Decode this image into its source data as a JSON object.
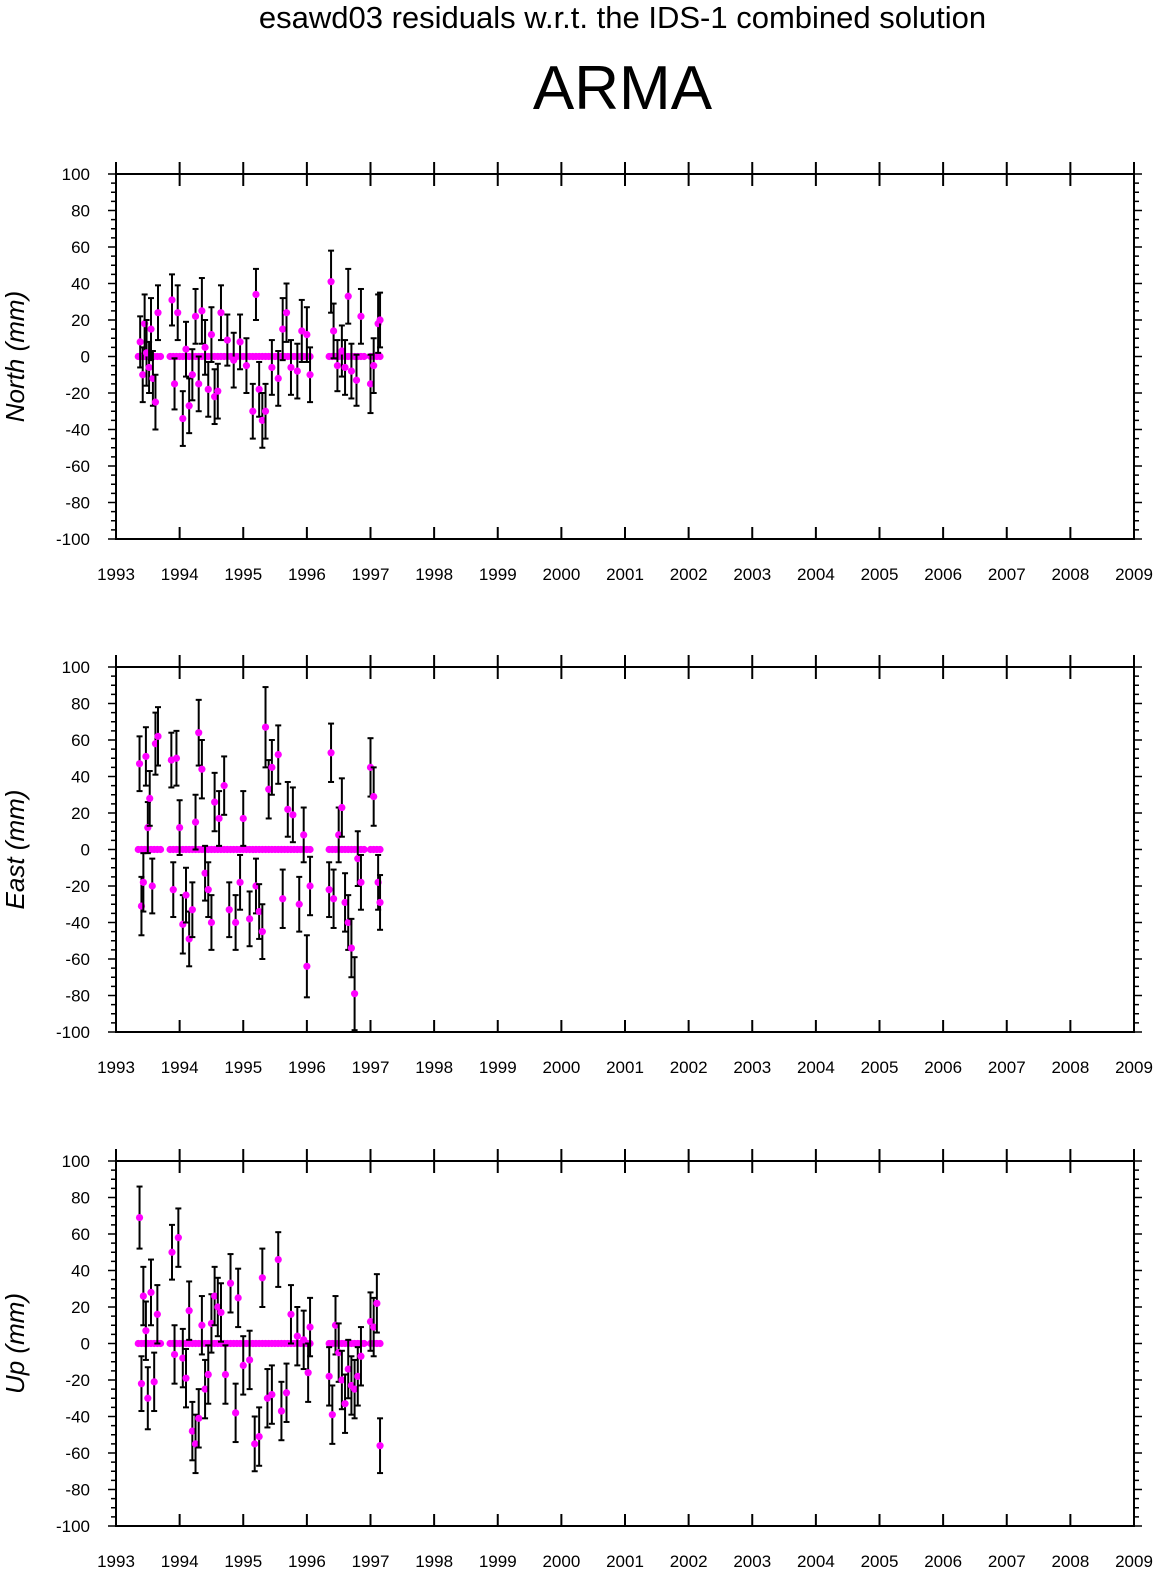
{
  "header": {
    "supertitle": "esawd03 residuals w.r.t. the IDS-1 combined solution",
    "station": "ARMA"
  },
  "colors": {
    "point": "#ff00ff",
    "errorbar": "#000000",
    "axis": "#000000"
  },
  "chart_data": [
    {
      "type": "scatter",
      "ylabel": "North (mm)",
      "ylim": [
        -100,
        100
      ],
      "yticks": [
        -100,
        -80,
        -60,
        -40,
        -20,
        0,
        20,
        40,
        60,
        80,
        100
      ],
      "xlim": [
        1993,
        2009
      ],
      "xticks": [
        "1993",
        "1994",
        "1995",
        "1996",
        "1997",
        "1998",
        "1999",
        "2000",
        "2001",
        "2002",
        "2003",
        "2004",
        "2005",
        "2006",
        "2007",
        "2008",
        "2009"
      ],
      "zero_points": [
        1993.35,
        1993.4,
        1993.45,
        1993.5,
        1993.55,
        1993.6,
        1993.65,
        1993.7,
        1993.85,
        1993.9,
        1993.95,
        1994.0,
        1994.05,
        1994.1,
        1994.15,
        1994.2,
        1994.25,
        1994.3,
        1994.35,
        1994.4,
        1994.45,
        1994.5,
        1994.55,
        1994.6,
        1994.65,
        1994.7,
        1994.75,
        1994.8,
        1994.85,
        1994.9,
        1994.95,
        1995.0,
        1995.05,
        1995.1,
        1995.15,
        1995.2,
        1995.25,
        1995.3,
        1995.35,
        1995.4,
        1995.45,
        1995.5,
        1995.55,
        1995.6,
        1995.65,
        1995.7,
        1995.75,
        1995.8,
        1995.85,
        1995.9,
        1995.95,
        1996.0,
        1996.05,
        1996.35,
        1996.4,
        1996.45,
        1996.5,
        1996.55,
        1996.6,
        1996.65,
        1996.7,
        1996.75,
        1996.8,
        1996.85,
        1996.9,
        1997.0,
        1997.05,
        1997.1,
        1997.15
      ],
      "points": [
        {
          "x": 1993.38,
          "y": 8,
          "e": 14
        },
        {
          "x": 1993.42,
          "y": -10,
          "e": 15
        },
        {
          "x": 1993.45,
          "y": 18,
          "e": 16
        },
        {
          "x": 1993.48,
          "y": 2,
          "e": 18
        },
        {
          "x": 1993.52,
          "y": -6,
          "e": 14
        },
        {
          "x": 1993.55,
          "y": 15,
          "e": 17
        },
        {
          "x": 1993.58,
          "y": -12,
          "e": 15
        },
        {
          "x": 1993.62,
          "y": -25,
          "e": 15
        },
        {
          "x": 1993.66,
          "y": 24,
          "e": 15
        },
        {
          "x": 1993.88,
          "y": 31,
          "e": 14
        },
        {
          "x": 1993.92,
          "y": -15,
          "e": 14
        },
        {
          "x": 1993.97,
          "y": 24,
          "e": 15
        },
        {
          "x": 1994.05,
          "y": -34,
          "e": 15
        },
        {
          "x": 1994.1,
          "y": 4,
          "e": 15
        },
        {
          "x": 1994.15,
          "y": -27,
          "e": 15
        },
        {
          "x": 1994.2,
          "y": -10,
          "e": 14
        },
        {
          "x": 1994.25,
          "y": 22,
          "e": 15
        },
        {
          "x": 1994.3,
          "y": -15,
          "e": 15
        },
        {
          "x": 1994.35,
          "y": 25,
          "e": 18
        },
        {
          "x": 1994.4,
          "y": 5,
          "e": 15
        },
        {
          "x": 1994.45,
          "y": -18,
          "e": 15
        },
        {
          "x": 1994.5,
          "y": 12,
          "e": 15
        },
        {
          "x": 1994.55,
          "y": -22,
          "e": 15
        },
        {
          "x": 1994.6,
          "y": -19,
          "e": 15
        },
        {
          "x": 1994.65,
          "y": 24,
          "e": 15
        },
        {
          "x": 1994.75,
          "y": 9,
          "e": 14
        },
        {
          "x": 1994.85,
          "y": -2,
          "e": 15
        },
        {
          "x": 1994.95,
          "y": 8,
          "e": 15
        },
        {
          "x": 1995.05,
          "y": -5,
          "e": 15
        },
        {
          "x": 1995.15,
          "y": -30,
          "e": 15
        },
        {
          "x": 1995.2,
          "y": 34,
          "e": 14
        },
        {
          "x": 1995.25,
          "y": -18,
          "e": 15
        },
        {
          "x": 1995.3,
          "y": -35,
          "e": 15
        },
        {
          "x": 1995.35,
          "y": -30,
          "e": 15
        },
        {
          "x": 1995.45,
          "y": -6,
          "e": 15
        },
        {
          "x": 1995.55,
          "y": -12,
          "e": 15
        },
        {
          "x": 1995.62,
          "y": 15,
          "e": 17
        },
        {
          "x": 1995.68,
          "y": 24,
          "e": 16
        },
        {
          "x": 1995.75,
          "y": -6,
          "e": 15
        },
        {
          "x": 1995.85,
          "y": -8,
          "e": 15
        },
        {
          "x": 1995.92,
          "y": 14,
          "e": 17
        },
        {
          "x": 1996.0,
          "y": 12,
          "e": 15
        },
        {
          "x": 1996.05,
          "y": -10,
          "e": 15
        },
        {
          "x": 1996.38,
          "y": 41,
          "e": 17
        },
        {
          "x": 1996.42,
          "y": 14,
          "e": 15
        },
        {
          "x": 1996.48,
          "y": -5,
          "e": 14
        },
        {
          "x": 1996.55,
          "y": 3,
          "e": 14
        },
        {
          "x": 1996.6,
          "y": -6,
          "e": 15
        },
        {
          "x": 1996.65,
          "y": 33,
          "e": 15
        },
        {
          "x": 1996.7,
          "y": -8,
          "e": 15
        },
        {
          "x": 1996.78,
          "y": -13,
          "e": 14
        },
        {
          "x": 1996.85,
          "y": 22,
          "e": 15
        },
        {
          "x": 1997.0,
          "y": -15,
          "e": 16
        },
        {
          "x": 1997.05,
          "y": -5,
          "e": 15
        },
        {
          "x": 1997.12,
          "y": 18,
          "e": 16
        },
        {
          "x": 1997.15,
          "y": 20,
          "e": 15
        }
      ]
    },
    {
      "type": "scatter",
      "ylabel": "East (mm)",
      "ylim": [
        -100,
        100
      ],
      "yticks": [
        -100,
        -80,
        -60,
        -40,
        -20,
        0,
        20,
        40,
        60,
        80,
        100
      ],
      "xlim": [
        1993,
        2009
      ],
      "xticks": [
        "1993",
        "1994",
        "1995",
        "1996",
        "1997",
        "1998",
        "1999",
        "2000",
        "2001",
        "2002",
        "2003",
        "2004",
        "2005",
        "2006",
        "2007",
        "2008",
        "2009"
      ],
      "zero_points": [
        1993.35,
        1993.4,
        1993.45,
        1993.5,
        1993.55,
        1993.6,
        1993.65,
        1993.7,
        1993.85,
        1993.9,
        1993.95,
        1994.0,
        1994.05,
        1994.1,
        1994.15,
        1994.2,
        1994.25,
        1994.3,
        1994.35,
        1994.4,
        1994.45,
        1994.5,
        1994.55,
        1994.6,
        1994.65,
        1994.7,
        1994.75,
        1994.8,
        1994.85,
        1994.9,
        1994.95,
        1995.0,
        1995.05,
        1995.1,
        1995.15,
        1995.2,
        1995.25,
        1995.3,
        1995.35,
        1995.4,
        1995.45,
        1995.5,
        1995.55,
        1995.6,
        1995.65,
        1995.7,
        1995.75,
        1995.8,
        1995.85,
        1995.9,
        1995.95,
        1996.0,
        1996.05,
        1996.35,
        1996.4,
        1996.45,
        1996.5,
        1996.55,
        1996.6,
        1996.65,
        1996.7,
        1996.75,
        1996.8,
        1996.85,
        1996.9,
        1997.0,
        1997.05,
        1997.1,
        1997.15
      ],
      "points": [
        {
          "x": 1993.37,
          "y": 47,
          "e": 15
        },
        {
          "x": 1993.4,
          "y": -31,
          "e": 16
        },
        {
          "x": 1993.43,
          "y": -18,
          "e": 16
        },
        {
          "x": 1993.47,
          "y": 51,
          "e": 16
        },
        {
          "x": 1993.5,
          "y": 12,
          "e": 14
        },
        {
          "x": 1993.53,
          "y": 28,
          "e": 15
        },
        {
          "x": 1993.57,
          "y": -20,
          "e": 15
        },
        {
          "x": 1993.62,
          "y": 58,
          "e": 17
        },
        {
          "x": 1993.66,
          "y": 62,
          "e": 16
        },
        {
          "x": 1993.87,
          "y": 49,
          "e": 15
        },
        {
          "x": 1993.9,
          "y": -22,
          "e": 15
        },
        {
          "x": 1993.95,
          "y": 50,
          "e": 15
        },
        {
          "x": 1994.0,
          "y": 12,
          "e": 15
        },
        {
          "x": 1994.05,
          "y": -41,
          "e": 16
        },
        {
          "x": 1994.1,
          "y": -25,
          "e": 15
        },
        {
          "x": 1994.15,
          "y": -49,
          "e": 15
        },
        {
          "x": 1994.2,
          "y": -33,
          "e": 15
        },
        {
          "x": 1994.25,
          "y": 15,
          "e": 15
        },
        {
          "x": 1994.3,
          "y": 64,
          "e": 18
        },
        {
          "x": 1994.35,
          "y": 44,
          "e": 16
        },
        {
          "x": 1994.4,
          "y": -13,
          "e": 15
        },
        {
          "x": 1994.45,
          "y": -22,
          "e": 15
        },
        {
          "x": 1994.5,
          "y": -40,
          "e": 15
        },
        {
          "x": 1994.55,
          "y": 26,
          "e": 16
        },
        {
          "x": 1994.62,
          "y": 17,
          "e": 15
        },
        {
          "x": 1994.7,
          "y": 35,
          "e": 16
        },
        {
          "x": 1994.78,
          "y": -33,
          "e": 15
        },
        {
          "x": 1994.88,
          "y": -40,
          "e": 15
        },
        {
          "x": 1994.95,
          "y": -18,
          "e": 15
        },
        {
          "x": 1995.0,
          "y": 17,
          "e": 15
        },
        {
          "x": 1995.1,
          "y": -38,
          "e": 15
        },
        {
          "x": 1995.2,
          "y": -20,
          "e": 15
        },
        {
          "x": 1995.25,
          "y": -34,
          "e": 15
        },
        {
          "x": 1995.3,
          "y": -45,
          "e": 15
        },
        {
          "x": 1995.35,
          "y": 67,
          "e": 22
        },
        {
          "x": 1995.4,
          "y": 33,
          "e": 16
        },
        {
          "x": 1995.45,
          "y": 45,
          "e": 15
        },
        {
          "x": 1995.55,
          "y": 52,
          "e": 16
        },
        {
          "x": 1995.62,
          "y": -27,
          "e": 16
        },
        {
          "x": 1995.7,
          "y": 22,
          "e": 15
        },
        {
          "x": 1995.78,
          "y": 19,
          "e": 15
        },
        {
          "x": 1995.88,
          "y": -30,
          "e": 15
        },
        {
          "x": 1995.95,
          "y": 8,
          "e": 15
        },
        {
          "x": 1996.0,
          "y": -64,
          "e": 17
        },
        {
          "x": 1996.05,
          "y": -20,
          "e": 16
        },
        {
          "x": 1996.35,
          "y": -22,
          "e": 15
        },
        {
          "x": 1996.38,
          "y": 53,
          "e": 16
        },
        {
          "x": 1996.42,
          "y": -27,
          "e": 16
        },
        {
          "x": 1996.5,
          "y": 8,
          "e": 15
        },
        {
          "x": 1996.55,
          "y": 23,
          "e": 16
        },
        {
          "x": 1996.6,
          "y": -29,
          "e": 16
        },
        {
          "x": 1996.65,
          "y": -40,
          "e": 15
        },
        {
          "x": 1996.7,
          "y": -54,
          "e": 16
        },
        {
          "x": 1996.75,
          "y": -79,
          "e": 20
        },
        {
          "x": 1996.8,
          "y": -5,
          "e": 15
        },
        {
          "x": 1996.85,
          "y": -18,
          "e": 15
        },
        {
          "x": 1997.0,
          "y": 45,
          "e": 16
        },
        {
          "x": 1997.05,
          "y": 29,
          "e": 16
        },
        {
          "x": 1997.12,
          "y": -18,
          "e": 15
        },
        {
          "x": 1997.15,
          "y": -29,
          "e": 15
        }
      ]
    },
    {
      "type": "scatter",
      "ylabel": "Up (mm)",
      "ylim": [
        -100,
        100
      ],
      "yticks": [
        -100,
        -80,
        -60,
        -40,
        -20,
        0,
        20,
        40,
        60,
        80,
        100
      ],
      "xlim": [
        1993,
        2009
      ],
      "xticks": [
        "1993",
        "1994",
        "1995",
        "1996",
        "1997",
        "1998",
        "1999",
        "2000",
        "2001",
        "2002",
        "2003",
        "2004",
        "2005",
        "2006",
        "2007",
        "2008",
        "2009"
      ],
      "zero_points": [
        1993.35,
        1993.4,
        1993.45,
        1993.5,
        1993.55,
        1993.6,
        1993.65,
        1993.7,
        1993.85,
        1993.9,
        1993.95,
        1994.0,
        1994.05,
        1994.1,
        1994.15,
        1994.2,
        1994.25,
        1994.3,
        1994.35,
        1994.4,
        1994.45,
        1994.5,
        1994.55,
        1994.6,
        1994.65,
        1994.7,
        1994.75,
        1994.8,
        1994.85,
        1994.9,
        1994.95,
        1995.0,
        1995.05,
        1995.1,
        1995.15,
        1995.2,
        1995.25,
        1995.3,
        1995.35,
        1995.4,
        1995.45,
        1995.5,
        1995.55,
        1995.6,
        1995.65,
        1995.7,
        1995.75,
        1995.8,
        1995.85,
        1995.9,
        1995.95,
        1996.0,
        1996.05,
        1996.35,
        1996.4,
        1996.45,
        1996.5,
        1996.55,
        1996.6,
        1996.65,
        1996.7,
        1996.75,
        1996.8,
        1996.85,
        1996.9,
        1997.0,
        1997.05,
        1997.1,
        1997.15
      ],
      "points": [
        {
          "x": 1993.37,
          "y": 69,
          "e": 17
        },
        {
          "x": 1993.4,
          "y": -22,
          "e": 15
        },
        {
          "x": 1993.43,
          "y": 26,
          "e": 16
        },
        {
          "x": 1993.47,
          "y": 7,
          "e": 16
        },
        {
          "x": 1993.5,
          "y": -30,
          "e": 17
        },
        {
          "x": 1993.55,
          "y": 28,
          "e": 18
        },
        {
          "x": 1993.6,
          "y": -21,
          "e": 16
        },
        {
          "x": 1993.65,
          "y": 16,
          "e": 16
        },
        {
          "x": 1993.88,
          "y": 50,
          "e": 15
        },
        {
          "x": 1993.92,
          "y": -6,
          "e": 16
        },
        {
          "x": 1993.98,
          "y": 58,
          "e": 16
        },
        {
          "x": 1994.05,
          "y": -8,
          "e": 16
        },
        {
          "x": 1994.1,
          "y": -19,
          "e": 16
        },
        {
          "x": 1994.15,
          "y": 18,
          "e": 16
        },
        {
          "x": 1994.2,
          "y": -48,
          "e": 16
        },
        {
          "x": 1994.25,
          "y": -55,
          "e": 16
        },
        {
          "x": 1994.3,
          "y": -41,
          "e": 16
        },
        {
          "x": 1994.35,
          "y": 10,
          "e": 16
        },
        {
          "x": 1994.4,
          "y": -25,
          "e": 16
        },
        {
          "x": 1994.45,
          "y": -17,
          "e": 16
        },
        {
          "x": 1994.5,
          "y": 11,
          "e": 16
        },
        {
          "x": 1994.55,
          "y": 26,
          "e": 16
        },
        {
          "x": 1994.6,
          "y": 20,
          "e": 16
        },
        {
          "x": 1994.65,
          "y": 17,
          "e": 16
        },
        {
          "x": 1994.72,
          "y": -17,
          "e": 16
        },
        {
          "x": 1994.8,
          "y": 33,
          "e": 16
        },
        {
          "x": 1994.88,
          "y": -38,
          "e": 16
        },
        {
          "x": 1994.92,
          "y": 25,
          "e": 16
        },
        {
          "x": 1995.0,
          "y": -12,
          "e": 16
        },
        {
          "x": 1995.1,
          "y": -9,
          "e": 16
        },
        {
          "x": 1995.18,
          "y": -55,
          "e": 15
        },
        {
          "x": 1995.25,
          "y": -51,
          "e": 16
        },
        {
          "x": 1995.3,
          "y": 36,
          "e": 16
        },
        {
          "x": 1995.38,
          "y": -30,
          "e": 16
        },
        {
          "x": 1995.45,
          "y": -28,
          "e": 16
        },
        {
          "x": 1995.55,
          "y": 46,
          "e": 15
        },
        {
          "x": 1995.6,
          "y": -37,
          "e": 16
        },
        {
          "x": 1995.68,
          "y": -27,
          "e": 16
        },
        {
          "x": 1995.75,
          "y": 16,
          "e": 16
        },
        {
          "x": 1995.85,
          "y": 4,
          "e": 16
        },
        {
          "x": 1995.95,
          "y": 2,
          "e": 16
        },
        {
          "x": 1996.02,
          "y": -16,
          "e": 16
        },
        {
          "x": 1996.05,
          "y": 9,
          "e": 16
        },
        {
          "x": 1996.35,
          "y": -18,
          "e": 16
        },
        {
          "x": 1996.4,
          "y": -39,
          "e": 16
        },
        {
          "x": 1996.45,
          "y": 10,
          "e": 16
        },
        {
          "x": 1996.5,
          "y": -5,
          "e": 16
        },
        {
          "x": 1996.55,
          "y": -20,
          "e": 16
        },
        {
          "x": 1996.6,
          "y": -33,
          "e": 16
        },
        {
          "x": 1996.65,
          "y": -14,
          "e": 16
        },
        {
          "x": 1996.7,
          "y": -23,
          "e": 16
        },
        {
          "x": 1996.75,
          "y": -25,
          "e": 16
        },
        {
          "x": 1996.8,
          "y": -18,
          "e": 16
        },
        {
          "x": 1996.85,
          "y": -7,
          "e": 16
        },
        {
          "x": 1997.0,
          "y": 12,
          "e": 16
        },
        {
          "x": 1997.05,
          "y": 9,
          "e": 16
        },
        {
          "x": 1997.1,
          "y": 22,
          "e": 16
        },
        {
          "x": 1997.15,
          "y": -56,
          "e": 15
        }
      ]
    }
  ]
}
